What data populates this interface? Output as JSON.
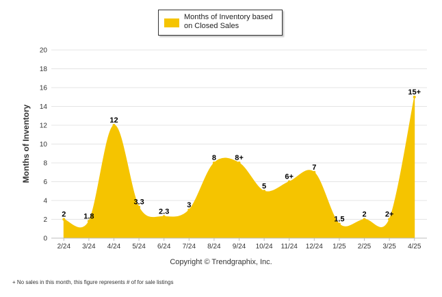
{
  "legend": {
    "label": "Months of Inventory based on Closed Sales"
  },
  "copyright": "Copyright © Trendgraphix, Inc.",
  "footnote": "+  No sales in this month, this figure represents # of for sale listings",
  "colors": {
    "fill": "#f5c400",
    "grid": "#e4e4e4",
    "axis": "#bdbdbd",
    "text": "#333333"
  },
  "chart_data": {
    "type": "area",
    "ylabel": "Months of Inventory",
    "ylim": [
      0,
      20
    ],
    "yticks": [
      0,
      2,
      4,
      6,
      8,
      10,
      12,
      14,
      16,
      18,
      20
    ],
    "grid": true,
    "legend_position": "top-center",
    "categories": [
      "2/24",
      "3/24",
      "4/24",
      "5/24",
      "6/24",
      "7/24",
      "8/24",
      "9/24",
      "10/24",
      "11/24",
      "12/24",
      "1/25",
      "2/25",
      "3/25",
      "4/25"
    ],
    "series": [
      {
        "name": "Months of Inventory based on Closed Sales",
        "values": [
          2,
          1.8,
          12,
          3.3,
          2.3,
          3,
          8,
          8,
          5,
          6,
          7,
          1.5,
          2,
          2,
          15
        ],
        "labels": [
          "2",
          "1.8",
          "12",
          "3.3",
          "2.3",
          "3",
          "8",
          "8+",
          "5",
          "6+",
          "7",
          "1.5",
          "2",
          "2+",
          "15+"
        ]
      }
    ]
  }
}
